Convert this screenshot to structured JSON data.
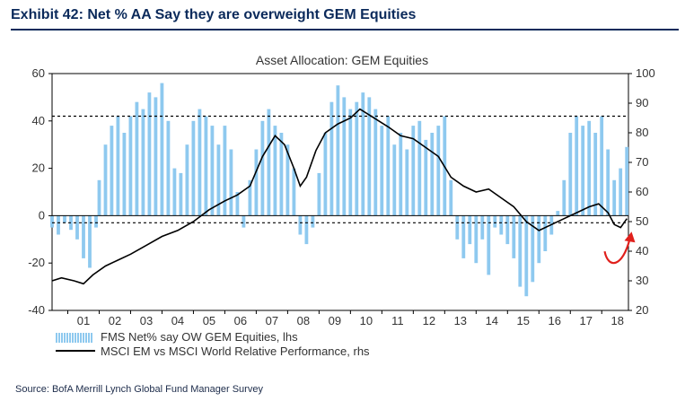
{
  "exhibit": {
    "title": "Exhibit 42: Net % AA Say they are overweight GEM Equities",
    "source": "Source:  BofA Merrill Lynch Global Fund Manager Survey"
  },
  "colors": {
    "bars": "#8ec9ef",
    "line": "#000000",
    "arrow": "#e0201c",
    "title": "#0b2a5b"
  },
  "chart_data": {
    "type": "bar+line",
    "title": "Asset Allocation:  GEM Equities",
    "x": {
      "categories": [
        "01",
        "02",
        "03",
        "04",
        "05",
        "06",
        "07",
        "08",
        "09",
        "10",
        "11",
        "12",
        "13",
        "14",
        "15",
        "16",
        "17",
        "18"
      ],
      "start_year": 2000.5,
      "end_year": 2018.85
    },
    "y_left": {
      "min": -40,
      "max": 60,
      "ticks": [
        "60",
        "40",
        "20",
        "0",
        "-20",
        "-40"
      ]
    },
    "y_right": {
      "min": 20,
      "max": 100,
      "ticks": [
        "100",
        "90",
        "80",
        "70",
        "60",
        "50",
        "40",
        "30",
        "20"
      ]
    },
    "reference_lines_left": [
      42,
      -3
    ],
    "legend": [
      {
        "label": "FMS Net% say OW GEM Equities, lhs",
        "kind": "bar"
      },
      {
        "label": "MSCI EM vs MSCI World Relative Performance, rhs",
        "kind": "line"
      }
    ],
    "series": [
      {
        "name": "FMS Net% say OW GEM Equities, lhs",
        "axis": "left",
        "kind": "bar",
        "points": [
          [
            2000.5,
            -5
          ],
          [
            2000.7,
            -8
          ],
          [
            2000.9,
            -3
          ],
          [
            2001.1,
            -6
          ],
          [
            2001.3,
            -10
          ],
          [
            2001.5,
            -18
          ],
          [
            2001.7,
            -22
          ],
          [
            2001.9,
            -5
          ],
          [
            2002.0,
            15
          ],
          [
            2002.2,
            30
          ],
          [
            2002.4,
            38
          ],
          [
            2002.6,
            42
          ],
          [
            2002.8,
            35
          ],
          [
            2003.0,
            42
          ],
          [
            2003.2,
            48
          ],
          [
            2003.4,
            45
          ],
          [
            2003.6,
            52
          ],
          [
            2003.8,
            50
          ],
          [
            2004.0,
            56
          ],
          [
            2004.2,
            40
          ],
          [
            2004.4,
            20
          ],
          [
            2004.6,
            18
          ],
          [
            2004.8,
            30
          ],
          [
            2005.0,
            40
          ],
          [
            2005.2,
            45
          ],
          [
            2005.4,
            42
          ],
          [
            2005.6,
            38
          ],
          [
            2005.8,
            30
          ],
          [
            2006.0,
            38
          ],
          [
            2006.2,
            28
          ],
          [
            2006.4,
            10
          ],
          [
            2006.6,
            -5
          ],
          [
            2006.8,
            15
          ],
          [
            2007.0,
            28
          ],
          [
            2007.2,
            40
          ],
          [
            2007.4,
            45
          ],
          [
            2007.6,
            38
          ],
          [
            2007.8,
            35
          ],
          [
            2008.0,
            30
          ],
          [
            2008.2,
            20
          ],
          [
            2008.4,
            -8
          ],
          [
            2008.6,
            -12
          ],
          [
            2008.8,
            -5
          ],
          [
            2009.0,
            18
          ],
          [
            2009.2,
            35
          ],
          [
            2009.4,
            48
          ],
          [
            2009.6,
            55
          ],
          [
            2009.8,
            50
          ],
          [
            2010.0,
            45
          ],
          [
            2010.2,
            48
          ],
          [
            2010.4,
            52
          ],
          [
            2010.6,
            50
          ],
          [
            2010.8,
            45
          ],
          [
            2011.0,
            38
          ],
          [
            2011.2,
            42
          ],
          [
            2011.4,
            30
          ],
          [
            2011.6,
            35
          ],
          [
            2011.8,
            28
          ],
          [
            2012.0,
            38
          ],
          [
            2012.2,
            40
          ],
          [
            2012.4,
            32
          ],
          [
            2012.6,
            35
          ],
          [
            2012.8,
            38
          ],
          [
            2013.0,
            42
          ],
          [
            2013.2,
            15
          ],
          [
            2013.4,
            -10
          ],
          [
            2013.6,
            -18
          ],
          [
            2013.8,
            -12
          ],
          [
            2014.0,
            -20
          ],
          [
            2014.2,
            -10
          ],
          [
            2014.4,
            -25
          ],
          [
            2014.6,
            -5
          ],
          [
            2014.8,
            -8
          ],
          [
            2015.0,
            -12
          ],
          [
            2015.2,
            -18
          ],
          [
            2015.4,
            -30
          ],
          [
            2015.6,
            -34
          ],
          [
            2015.8,
            -28
          ],
          [
            2016.0,
            -20
          ],
          [
            2016.2,
            -15
          ],
          [
            2016.4,
            -8
          ],
          [
            2016.6,
            2
          ],
          [
            2016.8,
            15
          ],
          [
            2017.0,
            35
          ],
          [
            2017.2,
            42
          ],
          [
            2017.4,
            38
          ],
          [
            2017.6,
            40
          ],
          [
            2017.8,
            35
          ],
          [
            2018.0,
            42
          ],
          [
            2018.2,
            28
          ],
          [
            2018.4,
            15
          ],
          [
            2018.6,
            20
          ],
          [
            2018.8,
            29
          ]
        ]
      },
      {
        "name": "MSCI EM vs MSCI World Relative Performance, rhs",
        "axis": "right",
        "kind": "line",
        "points": [
          [
            2000.5,
            30
          ],
          [
            2000.8,
            31
          ],
          [
            2001.2,
            30
          ],
          [
            2001.5,
            29
          ],
          [
            2001.8,
            32
          ],
          [
            2002.2,
            35
          ],
          [
            2002.6,
            37
          ],
          [
            2003.0,
            39
          ],
          [
            2003.5,
            42
          ],
          [
            2004.0,
            45
          ],
          [
            2004.5,
            47
          ],
          [
            2005.0,
            50
          ],
          [
            2005.5,
            54
          ],
          [
            2006.0,
            57
          ],
          [
            2006.4,
            59
          ],
          [
            2006.8,
            62
          ],
          [
            2007.2,
            72
          ],
          [
            2007.6,
            79
          ],
          [
            2007.9,
            76
          ],
          [
            2008.2,
            68
          ],
          [
            2008.4,
            62
          ],
          [
            2008.6,
            65
          ],
          [
            2008.9,
            74
          ],
          [
            2009.2,
            80
          ],
          [
            2009.6,
            83
          ],
          [
            2010.0,
            85
          ],
          [
            2010.3,
            88
          ],
          [
            2010.6,
            86
          ],
          [
            2010.9,
            84
          ],
          [
            2011.2,
            82
          ],
          [
            2011.6,
            79
          ],
          [
            2012.0,
            78
          ],
          [
            2012.4,
            75
          ],
          [
            2012.8,
            72
          ],
          [
            2013.2,
            65
          ],
          [
            2013.6,
            62
          ],
          [
            2014.0,
            60
          ],
          [
            2014.4,
            61
          ],
          [
            2014.8,
            58
          ],
          [
            2015.2,
            55
          ],
          [
            2015.6,
            50
          ],
          [
            2016.0,
            47
          ],
          [
            2016.4,
            49
          ],
          [
            2016.8,
            51
          ],
          [
            2017.2,
            53
          ],
          [
            2017.6,
            55
          ],
          [
            2017.9,
            56
          ],
          [
            2018.2,
            53
          ],
          [
            2018.4,
            49
          ],
          [
            2018.6,
            48
          ],
          [
            2018.8,
            51
          ]
        ]
      }
    ]
  }
}
